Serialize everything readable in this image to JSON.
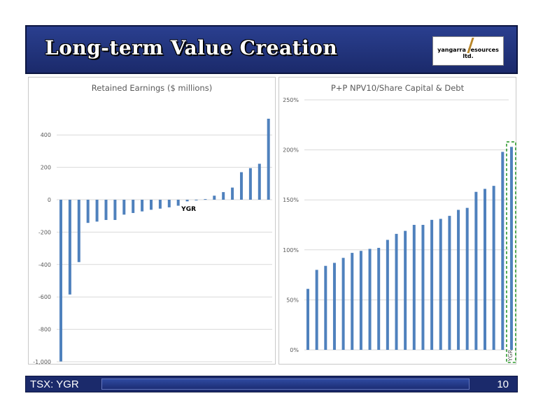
{
  "slide": {
    "title": "Long-term Value Creation",
    "logo_text": "yangarra resources ltd.",
    "footer_left": "TSX: YGR",
    "footer_right": "10"
  },
  "colors": {
    "bar": "#4f81bd",
    "header": "#1b2a6b",
    "highlight": "#2e9a2e"
  },
  "chart_data": [
    {
      "type": "bar",
      "title": "Retained Earnings ($ millions)",
      "ylim": [
        -1000,
        500
      ],
      "yticks": [
        -1000,
        -800,
        -600,
        -400,
        -200,
        0,
        200,
        400
      ],
      "ytick_labels": [
        "-1,000",
        "-800",
        "-600",
        "-400",
        "-200",
        "0",
        "200",
        "400"
      ],
      "grid": true,
      "values": [
        -998,
        -585,
        -385,
        -143,
        -135,
        -125,
        -125,
        -92,
        -82,
        -72,
        -62,
        -55,
        -47,
        -37,
        -10,
        -3,
        4,
        25,
        47,
        75,
        170,
        195,
        222,
        500
      ],
      "highlight_index": 14,
      "annotation": "YGR"
    },
    {
      "type": "bar",
      "title": "P+P NPV10/Share Capital & Debt",
      "ylim": [
        0,
        250
      ],
      "yticks": [
        0,
        50,
        100,
        150,
        200,
        250
      ],
      "ytick_labels": [
        "0%",
        "50%",
        "100%",
        "150%",
        "200%",
        "250%"
      ],
      "grid": true,
      "values": [
        61,
        80,
        84,
        87,
        92,
        97,
        99,
        101,
        102,
        110,
        116,
        119,
        125,
        125,
        130,
        131,
        134,
        140,
        142,
        158,
        161,
        164,
        198,
        203
      ],
      "highlight_index": 23,
      "highlight_label": "YGR"
    }
  ]
}
